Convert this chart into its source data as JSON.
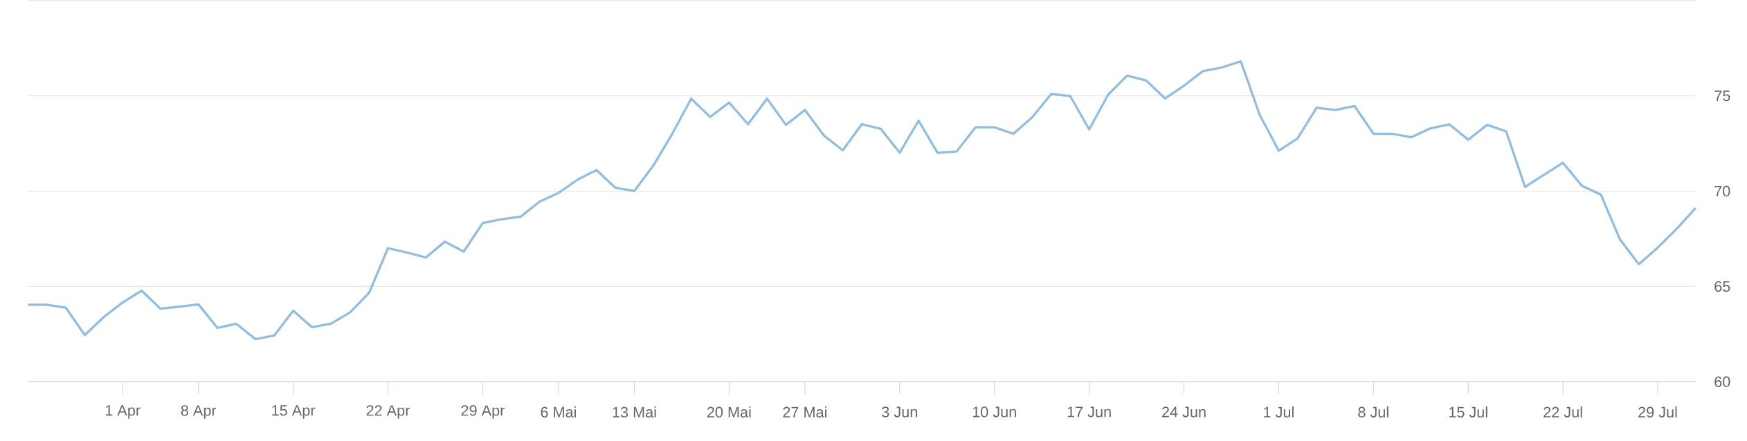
{
  "chart_data": {
    "type": "line",
    "categories": [
      null,
      null,
      null,
      null,
      null,
      "1 Apr",
      null,
      null,
      null,
      "8 Apr",
      null,
      null,
      null,
      null,
      "15 Apr",
      null,
      null,
      null,
      null,
      "22 Apr",
      null,
      null,
      null,
      null,
      "29 Apr",
      null,
      null,
      null,
      "6 Mai",
      null,
      null,
      null,
      "13 Mai",
      null,
      null,
      null,
      null,
      "20 Mai",
      null,
      null,
      null,
      "27 Mai",
      null,
      null,
      null,
      null,
      "3 Jun",
      null,
      null,
      null,
      null,
      "10 Jun",
      null,
      null,
      null,
      null,
      "17 Jun",
      null,
      null,
      null,
      null,
      "24 Jun",
      null,
      null,
      null,
      null,
      "1 Jul",
      null,
      null,
      null,
      null,
      "8 Jul",
      null,
      null,
      null,
      null,
      "15 Jul",
      null,
      null,
      null,
      null,
      "22 Jul",
      null,
      null,
      null,
      null,
      "29 Jul",
      null,
      null
    ],
    "values": [
      64.04,
      64.04,
      63.89,
      62.45,
      63.39,
      64.16,
      64.78,
      63.83,
      63.94,
      64.06,
      62.83,
      63.04,
      62.24,
      62.43,
      63.73,
      62.86,
      63.05,
      63.64,
      64.66,
      67.01,
      66.78,
      66.52,
      67.35,
      66.83,
      68.33,
      68.53,
      68.66,
      69.45,
      69.91,
      70.6,
      71.11,
      70.18,
      70.01,
      71.34,
      73.01,
      74.85,
      73.89,
      74.65,
      73.51,
      74.85,
      73.48,
      74.26,
      72.92,
      72.14,
      73.51,
      73.27,
      72.02,
      73.7,
      72.01,
      72.08,
      73.35,
      73.35,
      73.01,
      73.88,
      75.1,
      74.99,
      73.24,
      75.06,
      76.06,
      75.81,
      74.87,
      75.53,
      76.3,
      76.49,
      76.81,
      74.0,
      72.12,
      72.77,
      74.38,
      74.26,
      74.47,
      73.01,
      73.01,
      72.83,
      73.29,
      73.51,
      72.7,
      73.48,
      73.14,
      70.22,
      70.86,
      71.49,
      70.28,
      69.82,
      67.48,
      66.17,
      67.04,
      68.02,
      69.12
    ],
    "color": "#8fbde3",
    "ylim": [
      60,
      80
    ],
    "yticks": [
      60,
      65,
      70,
      75,
      {
        "value": 80,
        "label": null
      }
    ],
    "grid": "y"
  }
}
